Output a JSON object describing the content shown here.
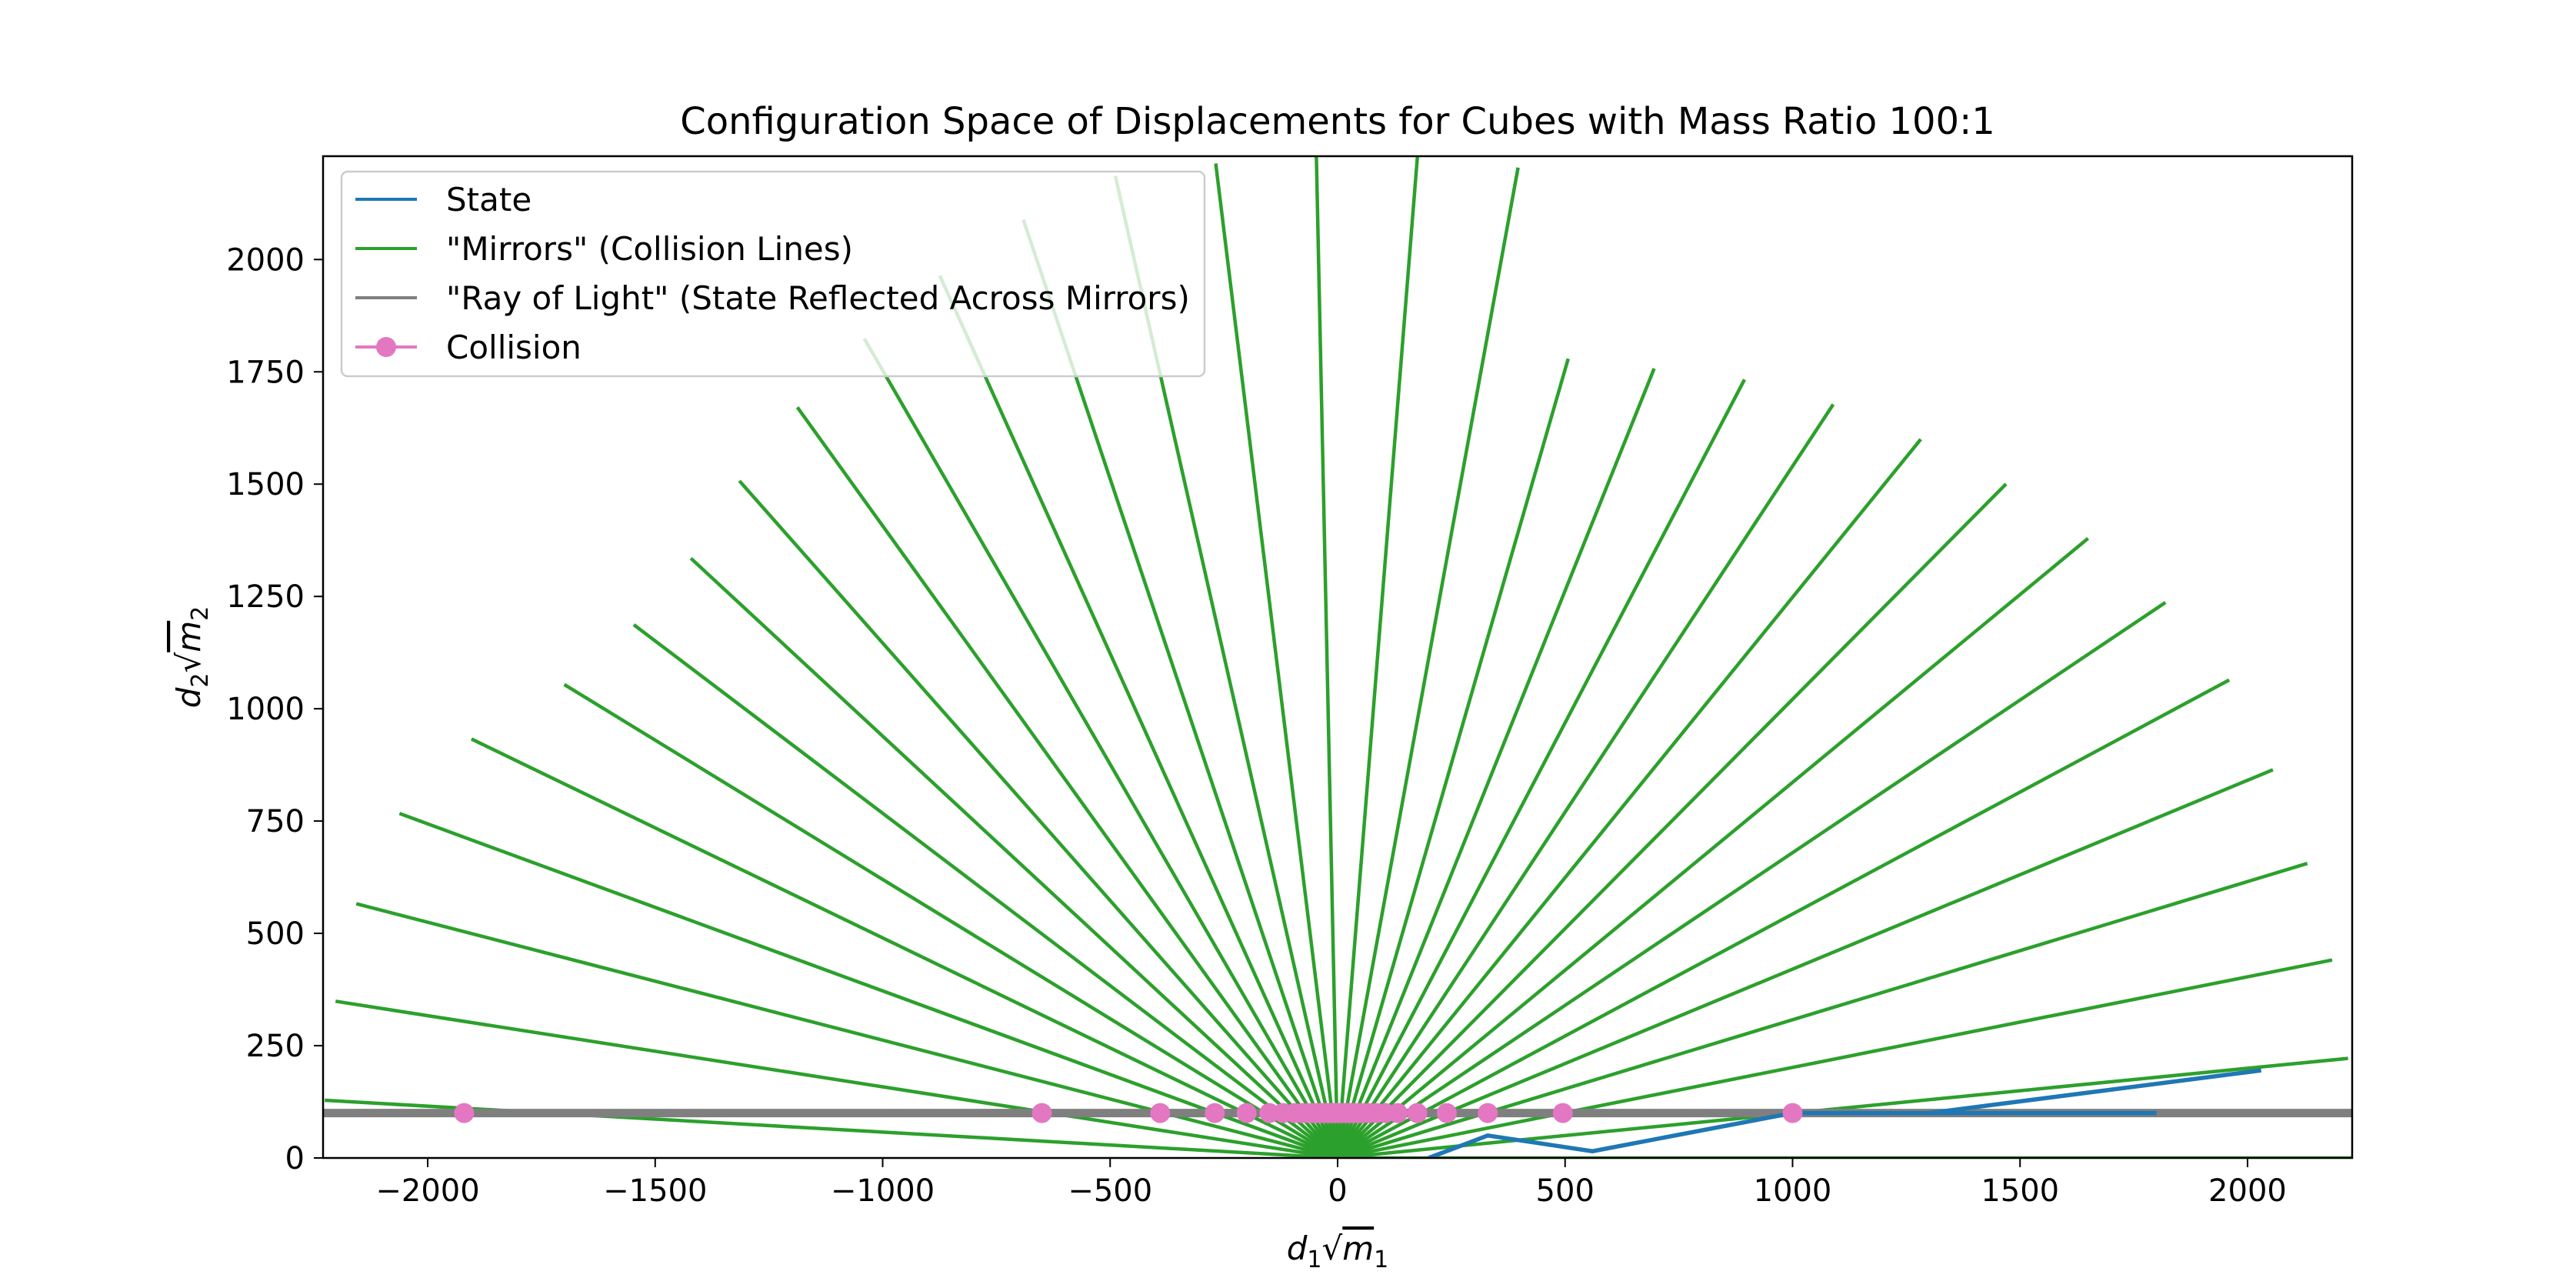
{
  "chart_data": {
    "type": "line",
    "title": "Configuration Space of Displacements for Cubes with Mass Ratio 100:1",
    "xlabel": {
      "main": "d",
      "sub1": "1",
      "m": "m",
      "sub2": "1"
    },
    "ylabel": {
      "main": "d",
      "sub1": "2",
      "m": "m",
      "sub2": "2"
    },
    "xlim": [
      -2230,
      2230
    ],
    "ylim": [
      0,
      2230
    ],
    "xticks": [
      -2000,
      -1500,
      -1000,
      -500,
      0,
      500,
      1000,
      1500,
      2000
    ],
    "xtick_labels": [
      "−2000",
      "−1500",
      "−1000",
      "−500",
      "0",
      "500",
      "1000",
      "1500",
      "2000"
    ],
    "yticks": [
      0,
      250,
      500,
      750,
      1000,
      1250,
      1500,
      1750,
      2000
    ],
    "ytick_labels": [
      "0",
      "250",
      "500",
      "750",
      "1000",
      "1250",
      "1500",
      "1750",
      "2000"
    ],
    "grid": false,
    "legend_position": "top-left",
    "legend": [
      {
        "label": "State",
        "color": "#1f77b4",
        "marker": "line"
      },
      {
        "label": "\"Mirrors\" (Collision Lines)",
        "color": "#2ca02c",
        "marker": "line"
      },
      {
        "label": "\"Ray of Light\" (State Reflected Across Mirrors)",
        "color": "#7f7f7f",
        "marker": "line"
      },
      {
        "label": "Collision",
        "color": "#e377c2",
        "marker": "circle-line"
      }
    ],
    "series": [
      {
        "name": "State",
        "color": "#1f77b4",
        "points": [
          [
            1800,
            100
          ],
          [
            1300,
            100
          ],
          [
            1000,
            100
          ],
          [
            560,
            15
          ],
          [
            330,
            50
          ],
          [
            200,
            0
          ]
        ],
        "points_b": [
          [
            2030,
            195
          ],
          [
            1300,
            100
          ]
        ]
      },
      {
        "name": "\"Mirrors\" (Collision Lines)",
        "color": "#2ca02c",
        "origin": [
          0,
          0
        ],
        "angle_step_deg": 5.7,
        "angles_deg": [
          0,
          5.7,
          11.4,
          17.1,
          22.8,
          28.5,
          34.2,
          39.9,
          45.6,
          51.3,
          57.0,
          62.7,
          68.4,
          74.1,
          79.8,
          85.5,
          91.2,
          96.9,
          102.6,
          108.3,
          114.0,
          119.7,
          125.4,
          131.1,
          136.8,
          142.5,
          148.2,
          153.9,
          159.6,
          165.3,
          171.0,
          176.7
        ],
        "segment_lengths": [
          2230,
          2232,
          2230,
          2230,
          2230,
          2230,
          2200,
          2150,
          2100,
          2050,
          2000,
          1950,
          1890,
          1850,
          2240,
          2240,
          2240,
          2230,
          2240,
          2200,
          2150,
          2100,
          2050,
          2000,
          1950,
          1950,
          2000,
          2120,
          2200,
          2230,
          2230,
          2230
        ]
      },
      {
        "name": "\"Ray of Light\" (State Reflected Across Mirrors)",
        "color": "#7f7f7f",
        "points": [
          [
            -2230,
            100
          ],
          [
            2230,
            100
          ]
        ]
      },
      {
        "name": "Collision",
        "color": "#e377c2",
        "y": 100,
        "x": [
          -1920,
          -650,
          -390,
          -270,
          -200,
          -150,
          -120,
          -95,
          -78,
          -64,
          -53,
          -44,
          -36,
          -29,
          -23,
          -18,
          -13,
          -9,
          -5,
          -1,
          3,
          7,
          11,
          15,
          20,
          25,
          31,
          38,
          46,
          56,
          69,
          85,
          105,
          132,
          175,
          240,
          330,
          495,
          1000
        ]
      }
    ]
  }
}
